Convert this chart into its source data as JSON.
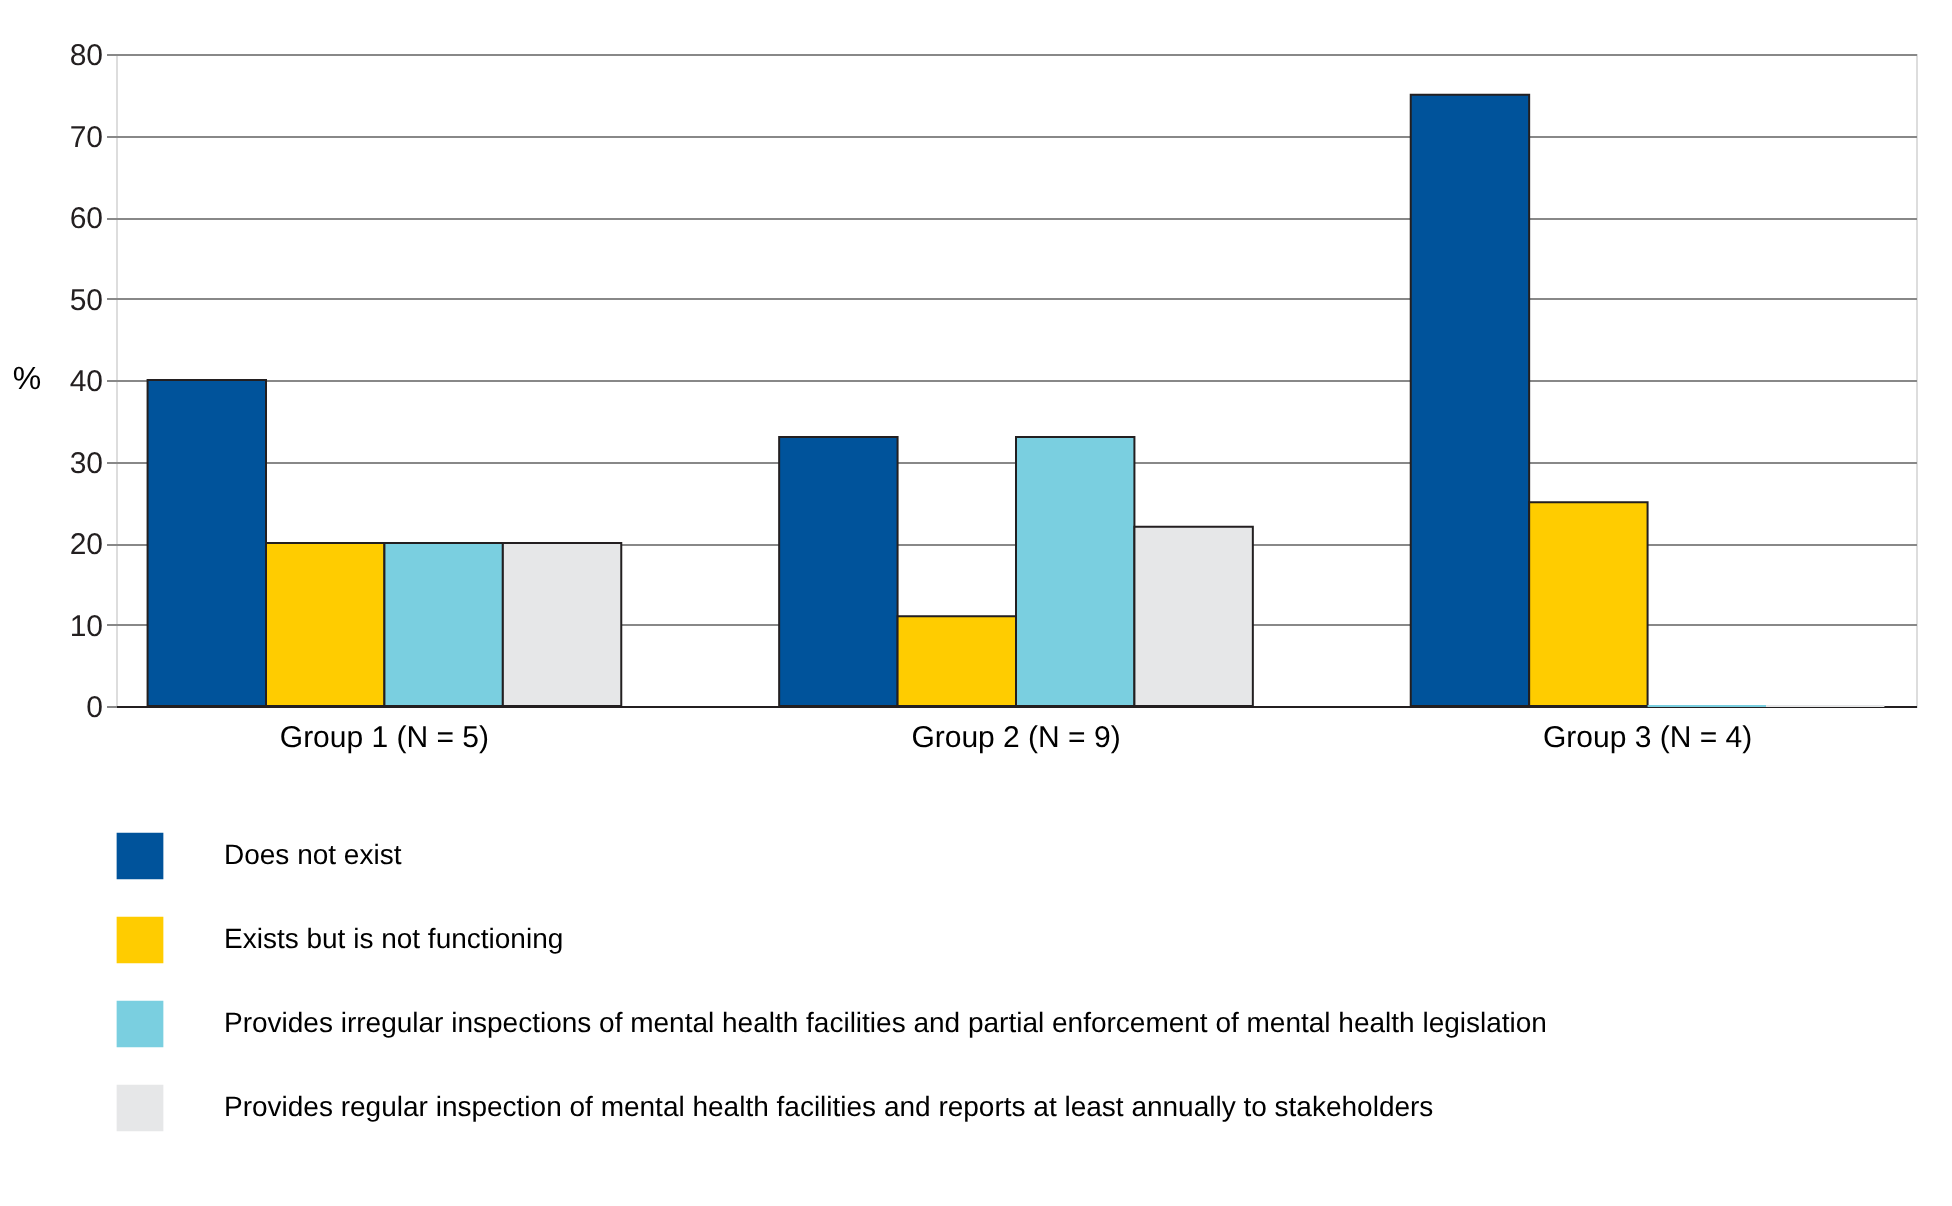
{
  "chart_data": {
    "type": "bar",
    "ylabel": "%",
    "categories": [
      "Group 1 (N = 5)",
      "Group 2 (N = 9)",
      "Group 3 (N = 4)"
    ],
    "series": [
      {
        "name": "Does not exist",
        "color": "#00539b",
        "values": [
          40,
          33,
          75
        ]
      },
      {
        "name": "Exists but is not functioning",
        "color": "#ffcc00",
        "values": [
          20,
          11,
          25
        ]
      },
      {
        "name": "Provides irregular inspections of mental health facilities and partial enforcement of mental health legislation",
        "color": "#7acfe0",
        "values": [
          20,
          33,
          0
        ]
      },
      {
        "name": "Provides regular inspection of mental health facilities and reports at least annually to stakeholders",
        "color": "#e6e7e8",
        "values": [
          20,
          22,
          0
        ]
      }
    ],
    "ylim": [
      0,
      80
    ],
    "yticks": [
      0,
      10,
      20,
      30,
      40,
      50,
      60,
      70,
      80
    ],
    "grid": "y",
    "legend": "bottom"
  }
}
